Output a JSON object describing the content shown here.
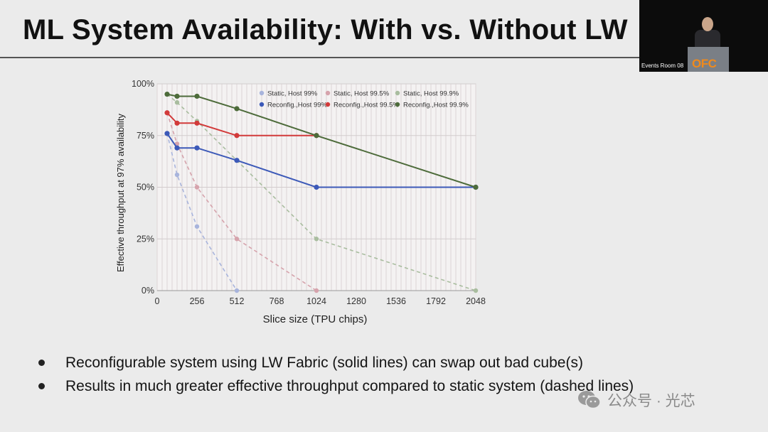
{
  "slide": {
    "title": "ML System Availability: With vs. Without LW",
    "bullets": [
      "Reconfigurable system using LW Fabric (solid lines) can swap out bad cube(s)",
      "Results in much greater effective throughput compared to static system (dashed lines)"
    ]
  },
  "video_inset": {
    "room_label": "Events Room 08",
    "podium_logo": "OFC"
  },
  "watermark": {
    "text": "公众号 · 光芯",
    "icon": "wechat-icon"
  },
  "chart_data": {
    "type": "line",
    "title": "",
    "xlabel": "Slice size (TPU chips)",
    "ylabel": "Effective throughput at 97% availability",
    "xlim": [
      0,
      2048
    ],
    "ylim": [
      0,
      100
    ],
    "x_ticks": [
      0,
      256,
      512,
      768,
      1024,
      1280,
      1536,
      1792,
      2048
    ],
    "x_tick_labels": [
      "0",
      "256",
      "512",
      "768",
      "1024",
      "1280",
      "1536",
      "1792",
      "2048"
    ],
    "y_ticks": [
      0,
      25,
      50,
      75,
      100
    ],
    "y_tick_labels": [
      "0%",
      "25%",
      "50%",
      "75%",
      "100%"
    ],
    "grid": "x",
    "legend_position": "top-right",
    "series": [
      {
        "name": "Static, Host 99%",
        "style": "dashed",
        "color": "#a8b4dc",
        "x": [
          64,
          128,
          256,
          512
        ],
        "y": [
          76,
          56,
          31,
          0
        ]
      },
      {
        "name": "Static, Host 99.5%",
        "style": "dashed",
        "color": "#d6a3ac",
        "x": [
          64,
          128,
          256,
          512,
          1024
        ],
        "y": [
          86,
          71,
          50,
          25,
          0
        ]
      },
      {
        "name": "Static, Host 99.9%",
        "style": "dashed",
        "color": "#a9bd9f",
        "x": [
          64,
          128,
          256,
          512,
          1024,
          2048
        ],
        "y": [
          95,
          91,
          82,
          63,
          25,
          0
        ]
      },
      {
        "name": "Reconfig.,Host 99%",
        "style": "solid",
        "color": "#3c59b8",
        "x": [
          64,
          128,
          256,
          512,
          1024,
          2048
        ],
        "y": [
          76,
          69,
          69,
          63,
          50,
          50
        ]
      },
      {
        "name": "Reconfig.,Host 99.5%",
        "style": "solid",
        "color": "#d23a3a",
        "x": [
          64,
          128,
          256,
          512,
          1024
        ],
        "y": [
          86,
          81,
          81,
          75,
          75
        ]
      },
      {
        "name": "Reconfig.,Host 99.9%",
        "style": "solid",
        "color": "#4d6b3a",
        "x": [
          64,
          128,
          256,
          512,
          1024,
          2048
        ],
        "y": [
          95,
          94,
          94,
          88,
          75,
          50
        ]
      }
    ]
  }
}
